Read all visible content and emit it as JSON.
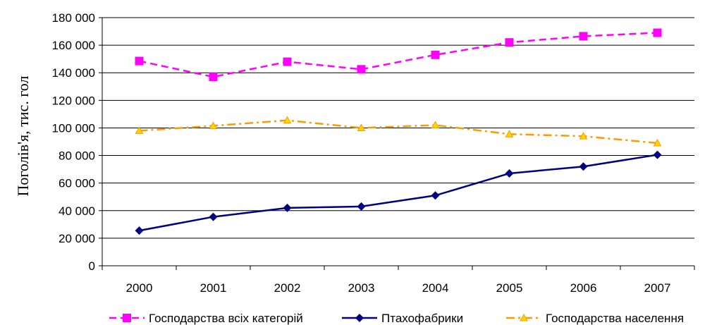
{
  "chart_data": {
    "type": "line",
    "title": "",
    "xlabel": "",
    "ylabel": "Поголів'я, тис. гол",
    "categories": [
      "2000",
      "2001",
      "2002",
      "2003",
      "2004",
      "2005",
      "2006",
      "2007"
    ],
    "ylim": [
      0,
      180000
    ],
    "y_ticks": [
      0,
      20000,
      40000,
      60000,
      80000,
      100000,
      120000,
      140000,
      160000,
      180000
    ],
    "y_tick_labels": [
      "0",
      "20 000",
      "40 000",
      "60 000",
      "80 000",
      "100 000",
      "120 000",
      "140 000",
      "160 000",
      "180 000"
    ],
    "grid": "horizontal",
    "legend_position": "bottom",
    "series": [
      {
        "name": "Господарства всіх категорій",
        "values": [
          148500,
          137000,
          148000,
          142500,
          153000,
          162000,
          166500,
          169000
        ],
        "color": "#ff00ff",
        "line_style": "dashed",
        "marker": "square"
      },
      {
        "name": "Птахофабрики",
        "values": [
          25500,
          35500,
          42000,
          43000,
          51000,
          67000,
          72000,
          80500
        ],
        "color": "#000080",
        "line_style": "solid",
        "marker": "diamond"
      },
      {
        "name": "Господарства населення",
        "values": [
          98000,
          101500,
          105500,
          100000,
          102000,
          95500,
          94000,
          89000
        ],
        "color": "#ff9900",
        "marker_fill": "#ffd700",
        "line_style": "dashdot",
        "marker": "triangle"
      }
    ]
  }
}
